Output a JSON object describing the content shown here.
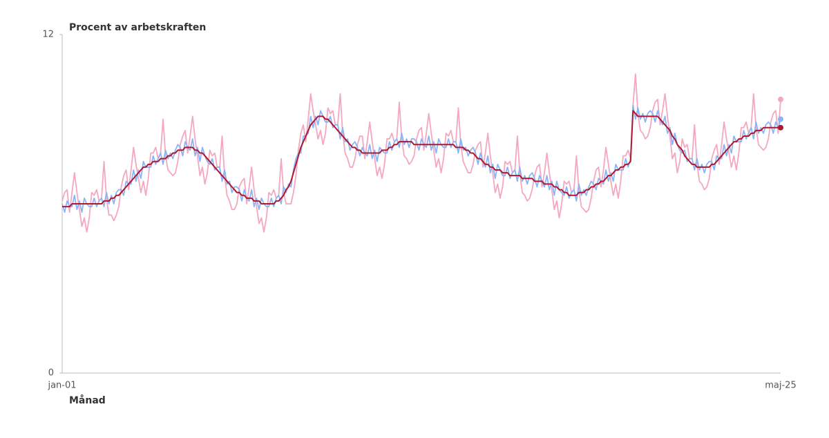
{
  "chart_data": {
    "type": "line",
    "y_label": "Procent av arbetskraften",
    "x_label": "Månad",
    "ylim": [
      0,
      12
    ],
    "yticks": [
      0,
      12
    ],
    "grid": false,
    "end_markers": true,
    "categories": [
      "jan-01",
      null,
      null,
      null,
      null,
      null,
      null,
      null,
      null,
      null,
      null,
      null,
      null,
      null,
      null,
      null,
      null,
      null,
      null,
      null,
      null,
      null,
      null,
      null,
      null,
      null,
      null,
      null,
      null,
      null,
      null,
      null,
      null,
      null,
      null,
      null,
      null,
      null,
      null,
      null,
      null,
      null,
      null,
      null,
      null,
      null,
      null,
      null,
      null,
      null,
      null,
      null,
      null,
      null,
      null,
      null,
      null,
      null,
      null,
      null,
      null,
      null,
      null,
      null,
      null,
      null,
      null,
      null,
      null,
      null,
      null,
      null,
      null,
      null,
      null,
      null,
      null,
      null,
      null,
      null,
      null,
      null,
      null,
      null,
      null,
      null,
      null,
      null,
      null,
      null,
      null,
      null,
      null,
      null,
      null,
      null,
      null,
      null,
      null,
      null,
      null,
      null,
      null,
      null,
      null,
      null,
      null,
      null,
      null,
      null,
      null,
      null,
      null,
      null,
      null,
      null,
      null,
      null,
      null,
      null,
      null,
      null,
      null,
      null,
      null,
      null,
      null,
      null,
      null,
      null,
      null,
      null,
      null,
      null,
      null,
      null,
      null,
      null,
      null,
      null,
      null,
      null,
      null,
      null,
      null,
      null,
      null,
      null,
      null,
      null,
      null,
      null,
      null,
      null,
      null,
      null,
      null,
      null,
      null,
      null,
      null,
      null,
      null,
      null,
      null,
      null,
      null,
      null,
      null,
      null,
      null,
      null,
      null,
      null,
      null,
      null,
      null,
      null,
      null,
      null,
      null,
      null,
      null,
      null,
      null,
      null,
      null,
      null,
      null,
      null,
      null,
      null,
      null,
      null,
      null,
      null,
      null,
      null,
      null,
      null,
      null,
      null,
      null,
      null,
      null,
      null,
      null,
      null,
      null,
      null,
      null,
      null,
      null,
      null,
      null,
      null,
      null,
      null,
      null,
      null,
      null,
      null,
      null,
      null,
      null,
      null,
      null,
      null,
      null,
      null,
      null,
      null,
      null,
      null,
      null,
      null,
      null,
      null,
      null,
      null,
      null,
      null,
      null,
      null,
      null,
      null,
      null,
      null,
      null,
      null,
      null,
      null,
      null,
      null,
      null,
      null,
      null,
      null,
      null,
      null,
      null,
      null,
      null,
      null,
      null,
      null,
      null,
      null,
      null,
      null,
      null,
      null,
      null,
      null,
      null,
      null,
      null,
      null,
      null,
      null,
      null,
      null,
      null,
      null,
      null,
      null,
      null,
      null,
      null,
      null,
      null,
      null,
      "maj-25"
    ],
    "series": [
      {
        "color": "#f5a6c0",
        "values": [
          6.1,
          6.4,
          6.5,
          5.7,
          6.4,
          7.1,
          6.4,
          5.8,
          5.2,
          5.5,
          5.0,
          5.5,
          6.4,
          6.3,
          6.5,
          6.1,
          6.2,
          7.5,
          6.2,
          5.6,
          5.6,
          5.4,
          5.6,
          5.9,
          6.6,
          7.0,
          7.2,
          6.5,
          7.2,
          8.0,
          7.4,
          6.9,
          6.4,
          6.8,
          6.3,
          6.9,
          7.8,
          7.8,
          8.0,
          7.6,
          7.8,
          9.0,
          7.7,
          7.2,
          7.1,
          7.0,
          7.1,
          7.5,
          8.1,
          8.4,
          8.6,
          7.8,
          8.4,
          9.1,
          8.3,
          7.7,
          7.0,
          7.3,
          6.7,
          7.1,
          7.9,
          7.7,
          7.8,
          7.3,
          7.3,
          8.4,
          7.0,
          6.3,
          6.1,
          5.8,
          5.8,
          6.0,
          6.6,
          6.8,
          6.9,
          6.0,
          6.6,
          7.3,
          6.5,
          5.9,
          5.3,
          5.5,
          5.0,
          5.5,
          6.4,
          6.3,
          6.5,
          6.2,
          6.3,
          7.6,
          6.4,
          6.0,
          6.0,
          6.0,
          6.4,
          7.0,
          7.9,
          8.5,
          8.8,
          8.2,
          9.0,
          9.9,
          9.3,
          8.8,
          8.3,
          8.6,
          8.1,
          8.5,
          9.4,
          9.2,
          9.3,
          8.8,
          8.8,
          9.9,
          8.5,
          7.8,
          7.6,
          7.3,
          7.3,
          7.6,
          8.1,
          8.4,
          8.4,
          7.6,
          8.2,
          8.9,
          8.2,
          7.6,
          7.0,
          7.3,
          6.9,
          7.4,
          8.3,
          8.3,
          8.5,
          8.2,
          8.3,
          9.6,
          8.3,
          7.7,
          7.6,
          7.4,
          7.5,
          7.7,
          8.3,
          8.6,
          8.7,
          7.9,
          8.5,
          9.2,
          8.5,
          7.9,
          7.3,
          7.6,
          7.1,
          7.6,
          8.5,
          8.4,
          8.6,
          8.2,
          8.2,
          9.4,
          8.1,
          7.5,
          7.3,
          7.1,
          7.1,
          7.4,
          7.9,
          8.1,
          8.2,
          7.3,
          7.8,
          8.5,
          7.7,
          7.1,
          6.4,
          6.7,
          6.2,
          6.6,
          7.5,
          7.4,
          7.5,
          7.1,
          7.2,
          8.4,
          7.1,
          6.4,
          6.3,
          6.1,
          6.2,
          6.5,
          7.0,
          7.3,
          7.4,
          6.6,
          7.1,
          7.8,
          7.1,
          6.5,
          5.8,
          6.1,
          5.5,
          6.0,
          6.8,
          6.7,
          6.8,
          6.4,
          6.5,
          7.7,
          6.5,
          5.9,
          5.8,
          5.7,
          5.8,
          6.2,
          6.8,
          7.2,
          7.3,
          6.6,
          7.2,
          8.0,
          7.4,
          6.8,
          6.3,
          6.7,
          6.2,
          6.8,
          7.7,
          7.7,
          7.9,
          7.6,
          9.5,
          10.6,
          9.2,
          8.6,
          8.5,
          8.3,
          8.4,
          8.7,
          9.3,
          9.6,
          9.7,
          8.8,
          9.3,
          9.9,
          9.1,
          8.4,
          7.6,
          7.8,
          7.1,
          7.5,
          8.3,
          8.0,
          8.1,
          7.6,
          7.6,
          8.8,
          7.4,
          6.8,
          6.7,
          6.5,
          6.6,
          6.9,
          7.6,
          7.9,
          8.1,
          7.4,
          8.1,
          8.9,
          8.3,
          7.8,
          7.3,
          7.7,
          7.2,
          7.8,
          8.7,
          8.7,
          8.9,
          8.5,
          8.7,
          9.9,
          8.7,
          8.1,
          8.0,
          7.9,
          8.0,
          8.3,
          8.9,
          9.2,
          9.3,
          8.5,
          9.7
        ]
      },
      {
        "color": "#8ab4f8",
        "values": [
          6.0,
          5.7,
          6.1,
          5.9,
          5.9,
          6.3,
          5.8,
          6.1,
          5.7,
          6.2,
          6.0,
          5.9,
          5.9,
          6.2,
          5.9,
          6.1,
          6.2,
          5.9,
          6.4,
          6.0,
          6.3,
          6.0,
          6.4,
          6.5,
          6.5,
          6.3,
          6.8,
          6.7,
          6.7,
          7.2,
          6.8,
          7.2,
          6.9,
          7.5,
          7.3,
          7.3,
          7.3,
          7.7,
          7.4,
          7.6,
          7.8,
          7.4,
          7.9,
          7.6,
          7.8,
          7.6,
          7.9,
          8.1,
          8.0,
          7.7,
          8.2,
          8.0,
          7.9,
          8.3,
          7.7,
          8.0,
          7.5,
          8.0,
          7.7,
          7.5,
          7.4,
          7.6,
          7.2,
          7.3,
          7.3,
          6.8,
          7.2,
          6.7,
          6.8,
          6.4,
          6.6,
          6.6,
          6.5,
          6.1,
          6.5,
          6.2,
          6.1,
          6.5,
          5.9,
          6.2,
          5.8,
          6.2,
          6.0,
          5.9,
          5.9,
          6.2,
          5.9,
          6.2,
          6.3,
          6.0,
          6.6,
          6.4,
          6.7,
          6.6,
          7.2,
          7.6,
          7.8,
          7.8,
          8.4,
          8.4,
          8.5,
          9.1,
          8.7,
          9.1,
          8.8,
          9.3,
          9.1,
          8.9,
          8.9,
          9.1,
          8.7,
          8.8,
          8.8,
          8.3,
          8.7,
          8.2,
          8.3,
          7.9,
          8.1,
          8.2,
          8.0,
          7.7,
          8.0,
          7.8,
          7.7,
          8.1,
          7.6,
          7.9,
          7.5,
          8.0,
          7.9,
          7.8,
          7.8,
          8.2,
          7.9,
          8.2,
          8.3,
          8.0,
          8.5,
          8.1,
          8.3,
          8.0,
          8.3,
          8.3,
          8.2,
          7.9,
          8.3,
          8.1,
          8.0,
          8.4,
          7.9,
          8.2,
          7.8,
          8.3,
          8.1,
          8.0,
          8.0,
          8.3,
          8.0,
          8.2,
          8.2,
          7.8,
          8.3,
          7.9,
          8.0,
          7.7,
          7.9,
          8.0,
          7.8,
          7.4,
          7.8,
          7.5,
          7.3,
          7.7,
          7.1,
          7.4,
          6.9,
          7.4,
          7.2,
          7.0,
          7.0,
          7.3,
          6.9,
          7.1,
          7.2,
          6.8,
          7.3,
          6.8,
          7.0,
          6.7,
          7.0,
          7.1,
          6.9,
          6.6,
          7.0,
          6.8,
          6.6,
          7.0,
          6.5,
          6.8,
          6.3,
          6.8,
          6.5,
          6.4,
          6.3,
          6.6,
          6.2,
          6.4,
          6.5,
          6.1,
          6.7,
          6.3,
          6.5,
          6.3,
          6.6,
          6.8,
          6.7,
          6.5,
          6.9,
          6.8,
          6.7,
          7.2,
          6.8,
          7.1,
          6.8,
          7.4,
          7.2,
          7.2,
          7.2,
          7.6,
          7.3,
          7.6,
          9.5,
          9.0,
          9.4,
          9.0,
          9.2,
          8.9,
          9.2,
          9.3,
          9.2,
          8.9,
          9.3,
          9.0,
          8.8,
          9.1,
          8.5,
          8.7,
          8.1,
          8.5,
          8.1,
          7.9,
          7.8,
          7.9,
          7.5,
          7.6,
          7.6,
          7.2,
          7.6,
          7.2,
          7.4,
          7.1,
          7.4,
          7.5,
          7.5,
          7.2,
          7.7,
          7.6,
          7.6,
          8.1,
          7.7,
          8.1,
          7.8,
          8.4,
          8.2,
          8.2,
          8.2,
          8.6,
          8.3,
          8.5,
          8.7,
          8.3,
          8.9,
          8.5,
          8.7,
          8.5,
          8.8,
          8.9,
          8.8,
          8.5,
          8.9,
          8.7,
          9.0
        ]
      },
      {
        "color": "#b0182b",
        "values": [
          5.9,
          5.9,
          5.9,
          5.9,
          6.0,
          6.0,
          6.0,
          6.0,
          6.0,
          6.0,
          6.0,
          6.0,
          6.0,
          6.0,
          6.0,
          6.0,
          6.0,
          6.1,
          6.1,
          6.1,
          6.2,
          6.2,
          6.3,
          6.3,
          6.4,
          6.5,
          6.6,
          6.7,
          6.8,
          6.9,
          7.0,
          7.1,
          7.2,
          7.3,
          7.3,
          7.4,
          7.4,
          7.5,
          7.5,
          7.5,
          7.6,
          7.6,
          7.6,
          7.7,
          7.7,
          7.8,
          7.8,
          7.9,
          7.9,
          7.9,
          8.0,
          8.0,
          8.0,
          8.0,
          7.9,
          7.9,
          7.8,
          7.8,
          7.7,
          7.6,
          7.5,
          7.4,
          7.3,
          7.2,
          7.1,
          7.0,
          6.9,
          6.8,
          6.7,
          6.6,
          6.5,
          6.4,
          6.4,
          6.3,
          6.3,
          6.2,
          6.2,
          6.2,
          6.1,
          6.1,
          6.1,
          6.0,
          6.0,
          6.0,
          6.0,
          6.0,
          6.0,
          6.1,
          6.1,
          6.2,
          6.3,
          6.5,
          6.6,
          6.8,
          7.1,
          7.4,
          7.7,
          8.0,
          8.2,
          8.4,
          8.6,
          8.8,
          8.9,
          9.0,
          9.1,
          9.1,
          9.1,
          9.0,
          9.0,
          8.9,
          8.8,
          8.7,
          8.6,
          8.5,
          8.4,
          8.3,
          8.2,
          8.1,
          8.0,
          8.0,
          7.9,
          7.9,
          7.8,
          7.8,
          7.8,
          7.8,
          7.8,
          7.8,
          7.8,
          7.8,
          7.9,
          7.9,
          7.9,
          8.0,
          8.0,
          8.1,
          8.1,
          8.2,
          8.2,
          8.2,
          8.2,
          8.2,
          8.2,
          8.1,
          8.1,
          8.1,
          8.1,
          8.1,
          8.1,
          8.1,
          8.1,
          8.1,
          8.1,
          8.1,
          8.1,
          8.1,
          8.1,
          8.1,
          8.1,
          8.1,
          8.0,
          8.0,
          8.0,
          8.0,
          7.9,
          7.9,
          7.8,
          7.8,
          7.7,
          7.6,
          7.6,
          7.5,
          7.4,
          7.4,
          7.3,
          7.3,
          7.2,
          7.2,
          7.2,
          7.1,
          7.1,
          7.1,
          7.0,
          7.0,
          7.0,
          7.0,
          7.0,
          6.9,
          6.9,
          6.9,
          6.9,
          6.9,
          6.8,
          6.8,
          6.8,
          6.8,
          6.7,
          6.7,
          6.7,
          6.7,
          6.6,
          6.6,
          6.5,
          6.5,
          6.4,
          6.4,
          6.3,
          6.3,
          6.3,
          6.3,
          6.4,
          6.4,
          6.4,
          6.5,
          6.5,
          6.6,
          6.6,
          6.7,
          6.7,
          6.8,
          6.8,
          6.9,
          7.0,
          7.0,
          7.1,
          7.2,
          7.2,
          7.3,
          7.3,
          7.4,
          7.4,
          7.5,
          9.3,
          9.2,
          9.1,
          9.1,
          9.1,
          9.1,
          9.1,
          9.1,
          9.1,
          9.1,
          9.1,
          9.0,
          8.9,
          8.8,
          8.7,
          8.6,
          8.4,
          8.3,
          8.1,
          8.0,
          7.9,
          7.7,
          7.6,
          7.5,
          7.4,
          7.4,
          7.3,
          7.3,
          7.3,
          7.3,
          7.3,
          7.3,
          7.4,
          7.4,
          7.5,
          7.6,
          7.7,
          7.8,
          7.9,
          8.0,
          8.1,
          8.2,
          8.2,
          8.3,
          8.3,
          8.4,
          8.4,
          8.4,
          8.5,
          8.5,
          8.6,
          8.6,
          8.6,
          8.7,
          8.7,
          8.7,
          8.7,
          8.7,
          8.7,
          8.7,
          8.7
        ]
      }
    ]
  }
}
